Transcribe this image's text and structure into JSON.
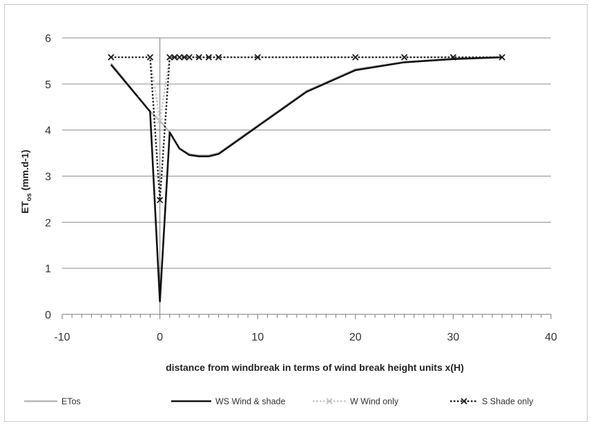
{
  "chart_data": {
    "type": "line",
    "title": "",
    "xlabel": "distance from windbreak in terms of wind break height units x(H)",
    "ylabel": {
      "main": "ET",
      "sub": "os",
      "units": " (mm.d-1)"
    },
    "xlim": [
      -10,
      40
    ],
    "ylim": [
      0,
      6
    ],
    "xticks": [
      -10,
      0,
      10,
      20,
      30,
      40
    ],
    "yticks": [
      0,
      1,
      2,
      3,
      4,
      5,
      6
    ],
    "grid": "horizontal",
    "legend_position": "bottom",
    "series": [
      {
        "name": "ETos",
        "color": "#b8b8b8",
        "style": "solid",
        "marker": "none",
        "x": [
          -5,
          -1,
          0,
          1,
          2,
          3,
          4,
          5,
          6,
          10,
          15,
          20,
          25,
          30,
          35
        ],
        "y": [
          5.45,
          4.4,
          4.2,
          3.95,
          3.6,
          3.48,
          3.45,
          3.45,
          3.5,
          4.1,
          4.85,
          5.32,
          5.48,
          5.55,
          5.58
        ]
      },
      {
        "name": "WS Wind & shade",
        "color": "#111111",
        "style": "solid",
        "marker": "none",
        "x": [
          -5,
          -1,
          0,
          1,
          2,
          3,
          4,
          5,
          6,
          10,
          15,
          20,
          25,
          30,
          35
        ],
        "y": [
          5.42,
          4.4,
          0.28,
          3.95,
          3.6,
          3.46,
          3.43,
          3.43,
          3.48,
          4.08,
          4.83,
          5.3,
          5.47,
          5.54,
          5.58
        ]
      },
      {
        "name": "W Wind only",
        "color": "#c4c4c4",
        "style": "dotted",
        "marker": "x",
        "x": [
          -5,
          -1,
          0,
          1,
          1.5,
          2,
          2.5,
          3,
          4,
          5,
          6,
          10,
          20,
          25,
          30,
          35
        ],
        "y": [
          5.58,
          5.58,
          4.2,
          5.58,
          5.58,
          5.58,
          5.58,
          5.58,
          5.58,
          5.58,
          5.58,
          5.58,
          5.58,
          5.58,
          5.58,
          5.58
        ]
      },
      {
        "name": "S Shade only",
        "color": "#222222",
        "style": "dotted",
        "marker": "x",
        "x": [
          -5,
          -1,
          0,
          1,
          1.5,
          2,
          2.5,
          3,
          4,
          5,
          6,
          10,
          20,
          25,
          30,
          35
        ],
        "y": [
          5.58,
          5.58,
          2.48,
          5.58,
          5.58,
          5.58,
          5.58,
          5.58,
          5.58,
          5.58,
          5.58,
          5.58,
          5.58,
          5.58,
          5.58,
          5.58
        ]
      }
    ]
  }
}
